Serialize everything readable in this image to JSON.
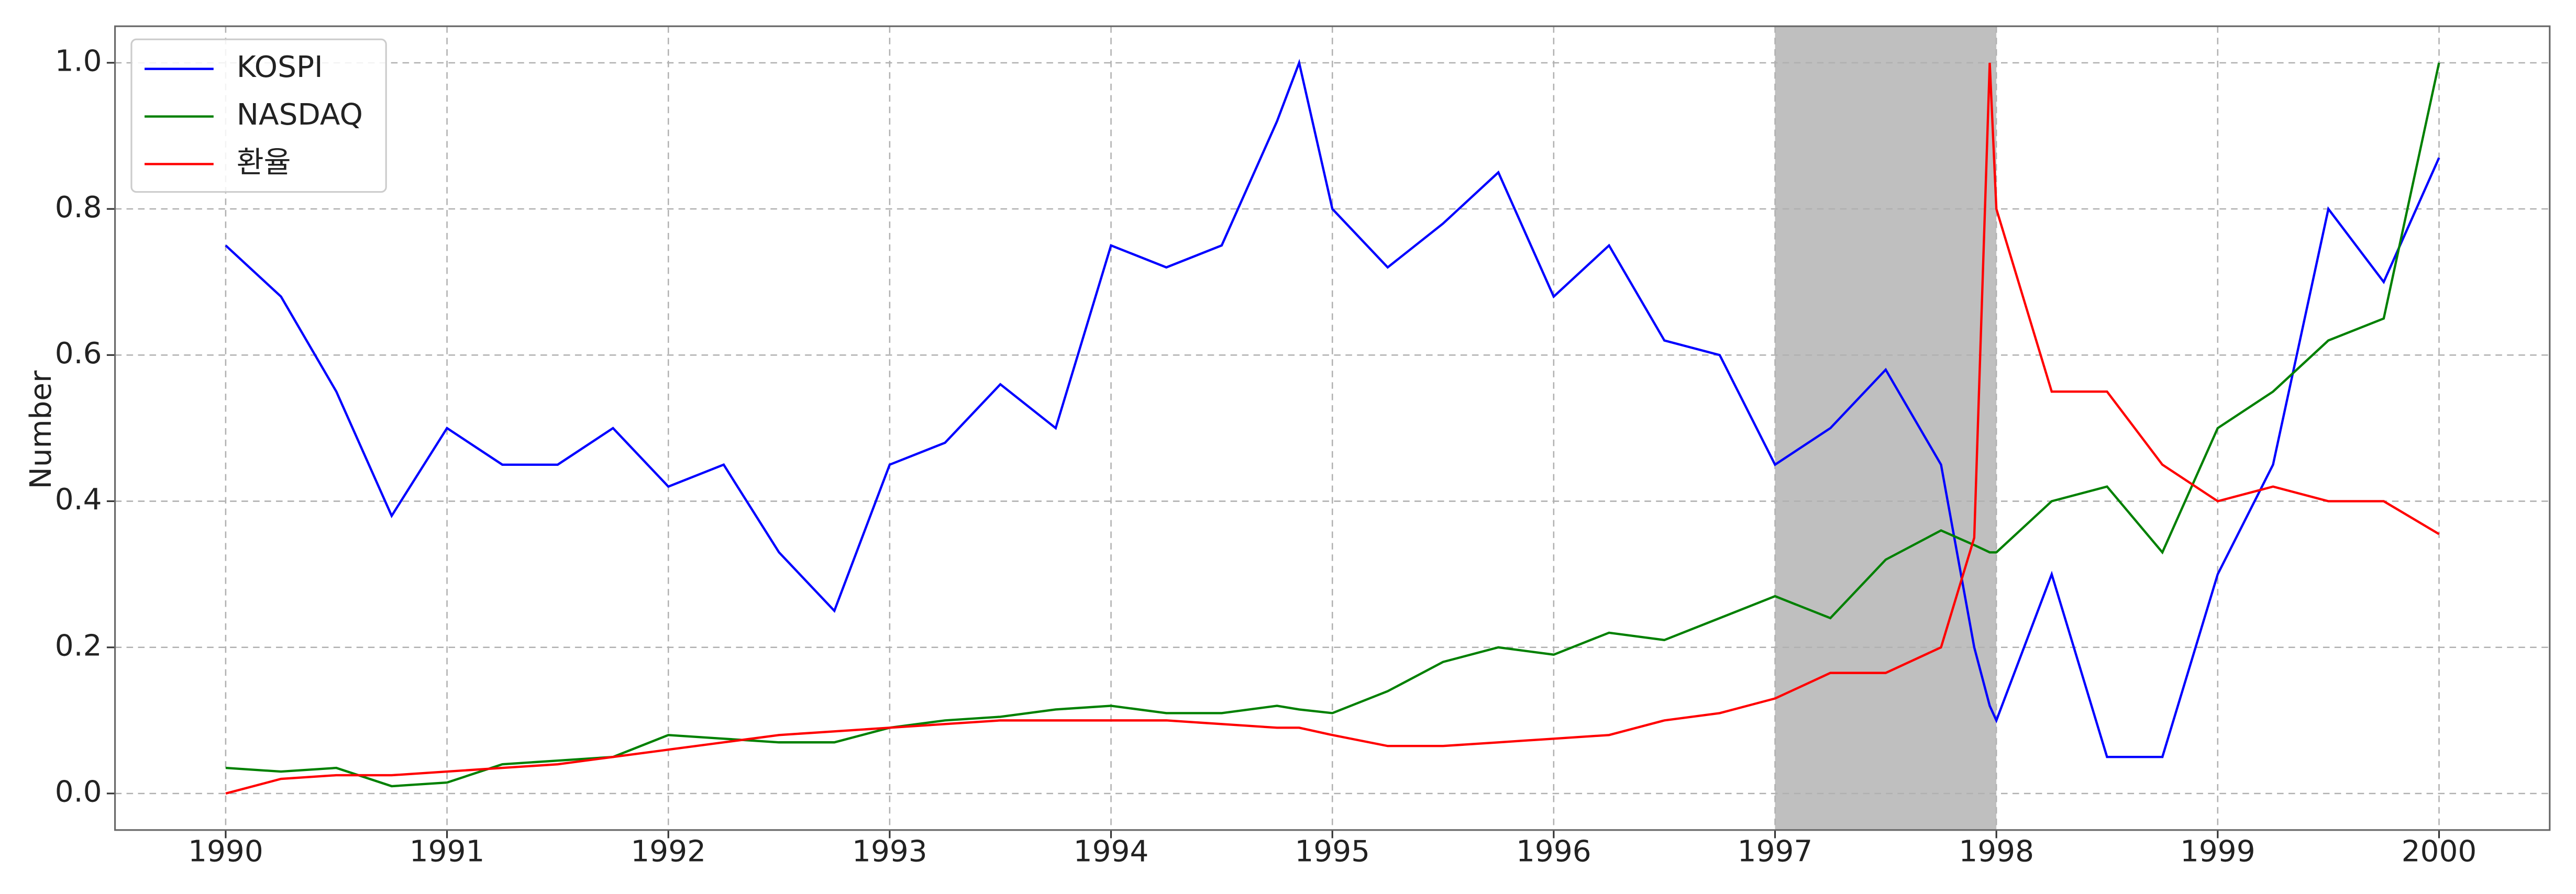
{
  "chart_data": {
    "type": "line",
    "y_label": "Number",
    "x": [
      1990,
      1990.25,
      1990.5,
      1990.75,
      1991,
      1991.25,
      1991.5,
      1991.75,
      1992,
      1992.25,
      1992.5,
      1992.75,
      1993,
      1993.25,
      1993.5,
      1993.75,
      1994,
      1994.25,
      1994.5,
      1994.75,
      1994.85,
      1995,
      1995.25,
      1995.5,
      1995.75,
      1996,
      1996.25,
      1996.5,
      1996.75,
      1997,
      1997.25,
      1997.5,
      1997.75,
      1997.9,
      1997.97,
      1998,
      1998.25,
      1998.5,
      1998.75,
      1999,
      1999.25,
      1999.5,
      1999.75,
      2000
    ],
    "series": [
      {
        "name": "KOSPI",
        "color": "#0000ff",
        "values": [
          0.75,
          0.68,
          0.55,
          0.38,
          0.5,
          0.45,
          0.45,
          0.5,
          0.42,
          0.45,
          0.33,
          0.25,
          0.45,
          0.48,
          0.56,
          0.5,
          0.75,
          0.72,
          0.75,
          0.92,
          1.0,
          0.8,
          0.72,
          0.78,
          0.85,
          0.68,
          0.75,
          0.62,
          0.6,
          0.45,
          0.5,
          0.58,
          0.45,
          0.2,
          0.12,
          0.1,
          0.3,
          0.05,
          0.05,
          0.3,
          0.45,
          0.8,
          0.7,
          0.87
        ]
      },
      {
        "name": "NASDAQ",
        "color": "#008000",
        "values": [
          0.035,
          0.03,
          0.035,
          0.01,
          0.015,
          0.04,
          0.045,
          0.05,
          0.08,
          0.075,
          0.07,
          0.07,
          0.09,
          0.1,
          0.105,
          0.115,
          0.12,
          0.11,
          0.11,
          0.12,
          0.115,
          0.11,
          0.14,
          0.18,
          0.2,
          0.19,
          0.22,
          0.21,
          0.24,
          0.27,
          0.24,
          0.32,
          0.36,
          0.34,
          0.33,
          0.33,
          0.4,
          0.42,
          0.33,
          0.5,
          0.55,
          0.62,
          0.65,
          1.0
        ]
      },
      {
        "name": "환율",
        "color": "#ff0000",
        "values": [
          0.0,
          0.02,
          0.025,
          0.025,
          0.03,
          0.035,
          0.04,
          0.05,
          0.06,
          0.07,
          0.08,
          0.085,
          0.09,
          0.095,
          0.1,
          0.1,
          0.1,
          0.1,
          0.095,
          0.09,
          0.09,
          0.08,
          0.065,
          0.065,
          0.07,
          0.075,
          0.08,
          0.1,
          0.11,
          0.13,
          0.165,
          0.165,
          0.2,
          0.35,
          1.0,
          0.8,
          0.55,
          0.55,
          0.45,
          0.4,
          0.42,
          0.4,
          0.4,
          0.355
        ]
      }
    ],
    "span": [
      1997,
      1998
    ],
    "span_color": "#bfbfbf",
    "xlim": [
      1989.5,
      2000.5
    ],
    "xticks": [
      1990,
      1991,
      1992,
      1993,
      1994,
      1995,
      1996,
      1997,
      1998,
      1999,
      2000
    ],
    "ylim": [
      -0.05,
      1.05
    ],
    "yticks": [
      {
        "value": 0,
        "label": "0.0"
      },
      0.2,
      0.4,
      0.6,
      0.8,
      {
        "value": 1,
        "label": "1.0"
      }
    ],
    "grid": true,
    "legend": "upper left"
  }
}
